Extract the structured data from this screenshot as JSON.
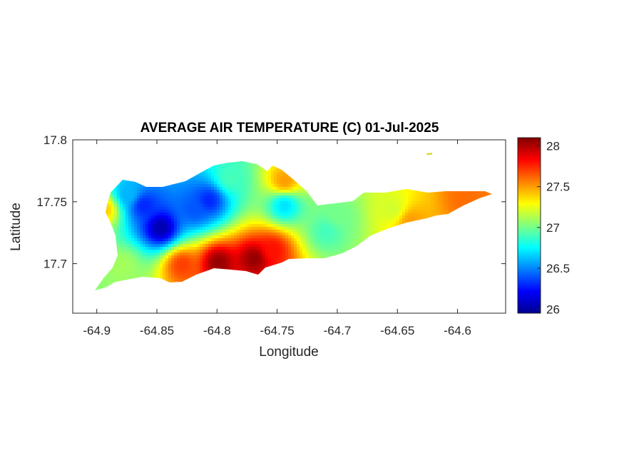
{
  "title": "AVERAGE AIR TEMPERATURE (C) 01-Jul-2025",
  "xlabel": "Longitude",
  "ylabel": "Latitude",
  "xticks": [
    "-64.9",
    "-64.85",
    "-64.8",
    "-64.75",
    "-64.7",
    "-64.65",
    "-64.6"
  ],
  "yticks": [
    "17.8",
    "17.75",
    "17.7"
  ],
  "colorbar": {
    "colormap": "jet",
    "range": [
      25.95,
      28.1
    ],
    "ticks": [
      "28",
      "27.5",
      "27",
      "26.5",
      "26"
    ]
  },
  "chart_data": {
    "type": "heatmap",
    "title": "AVERAGE AIR TEMPERATURE (C) 01-Jul-2025",
    "xlabel": "Longitude",
    "ylabel": "Latitude",
    "xlim": [
      -64.92,
      -64.56
    ],
    "ylim": [
      17.66,
      17.8
    ],
    "units": "C",
    "clim": [
      25.95,
      28.1
    ],
    "hotspots": [
      {
        "lon": -64.848,
        "lat": 17.73,
        "value": 26.05
      },
      {
        "lon": -64.862,
        "lat": 17.748,
        "value": 26.3
      },
      {
        "lon": -64.82,
        "lat": 17.745,
        "value": 26.4
      },
      {
        "lon": -64.808,
        "lat": 17.752,
        "value": 26.3
      },
      {
        "lon": -64.875,
        "lat": 17.757,
        "value": 26.6
      },
      {
        "lon": -64.745,
        "lat": 17.748,
        "value": 26.7
      },
      {
        "lon": -64.71,
        "lat": 17.727,
        "value": 26.9
      },
      {
        "lon": -64.79,
        "lat": 17.77,
        "value": 26.9
      },
      {
        "lon": -64.7,
        "lat": 17.74,
        "value": 27.0
      },
      {
        "lon": -64.655,
        "lat": 17.745,
        "value": 27.2
      },
      {
        "lon": -64.8,
        "lat": 17.702,
        "value": 28.05
      },
      {
        "lon": -64.77,
        "lat": 17.705,
        "value": 28.05
      },
      {
        "lon": -64.755,
        "lat": 17.712,
        "value": 27.8
      },
      {
        "lon": -64.83,
        "lat": 17.7,
        "value": 27.7
      },
      {
        "lon": -64.745,
        "lat": 17.768,
        "value": 27.5
      },
      {
        "lon": -64.595,
        "lat": 17.754,
        "value": 27.6
      },
      {
        "lon": -64.64,
        "lat": 17.735,
        "value": 27.5
      },
      {
        "lon": -64.895,
        "lat": 17.745,
        "value": 27.4
      },
      {
        "lon": -64.88,
        "lat": 17.7,
        "value": 27.1
      }
    ]
  }
}
